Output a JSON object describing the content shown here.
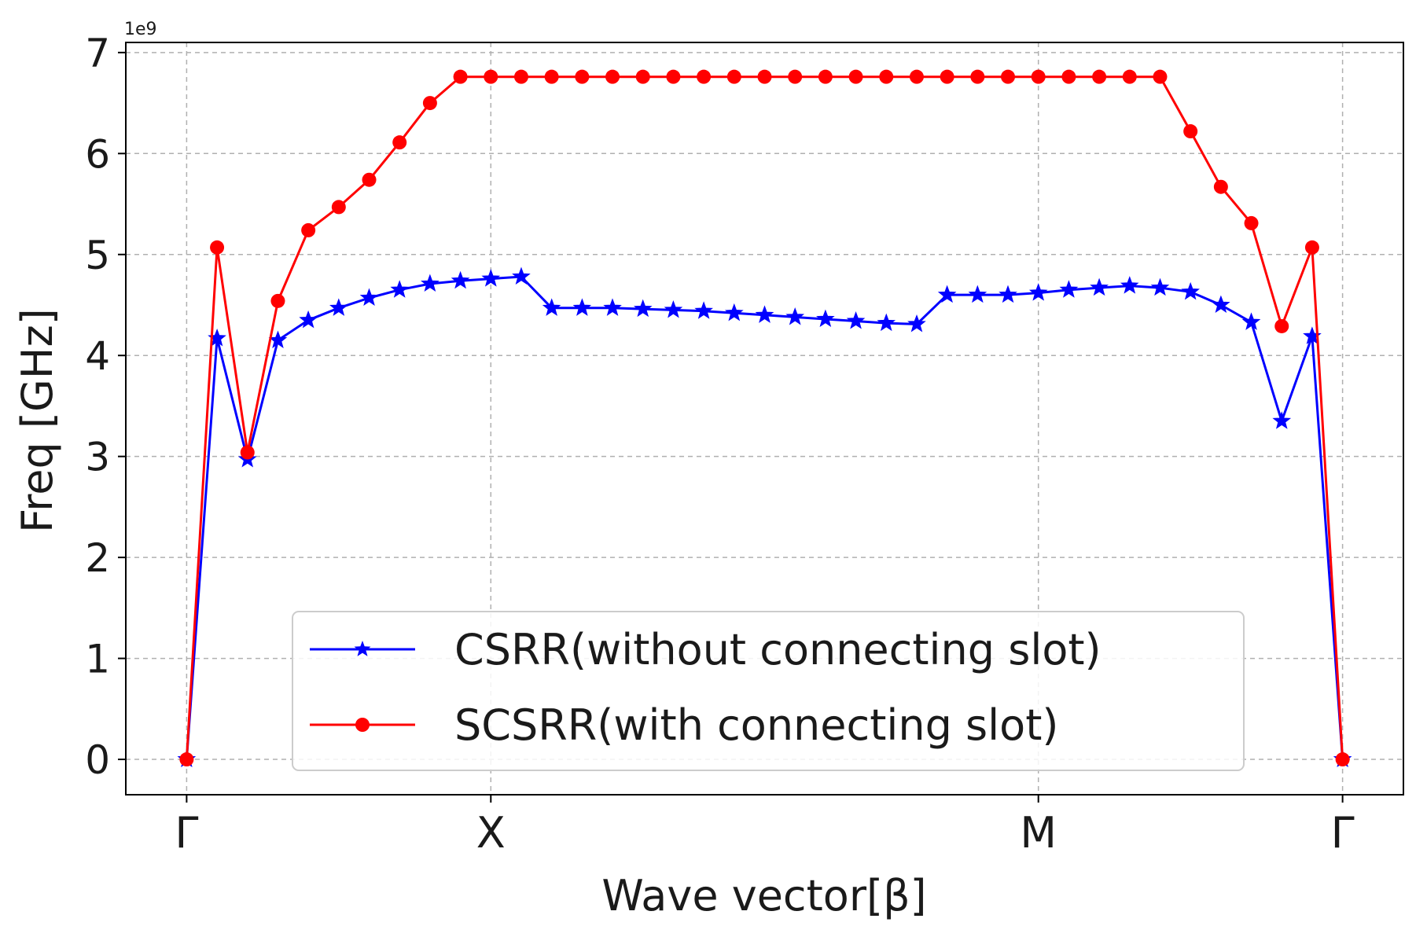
{
  "chart_data": {
    "type": "line",
    "title": "",
    "xlabel": "Wave vector[β]",
    "ylabel": "Freq [GHz]",
    "y_offset_label": "1e9",
    "ylim": [
      -0.35,
      7.1
    ],
    "xlim": [
      -2,
      40
    ],
    "grid": true,
    "legend_position": "lower-center",
    "x_ticks": [
      {
        "x": 0,
        "label": "Γ"
      },
      {
        "x": 10,
        "label": "X"
      },
      {
        "x": 28,
        "label": "M"
      },
      {
        "x": 38,
        "label": "Γ"
      }
    ],
    "y_ticks": [
      "0",
      "1",
      "2",
      "3",
      "4",
      "5",
      "6",
      "7"
    ],
    "x": [
      0,
      1,
      2,
      3,
      4,
      5,
      6,
      7,
      8,
      9,
      10,
      11,
      12,
      13,
      14,
      15,
      16,
      17,
      18,
      19,
      20,
      21,
      22,
      23,
      24,
      25,
      26,
      27,
      28,
      29,
      30,
      31,
      32,
      33,
      34,
      35,
      36,
      37,
      38
    ],
    "series": [
      {
        "name": "CSRR(without connecting slot)",
        "color": "#0000ff",
        "marker": "star",
        "values": [
          0,
          4.17,
          2.97,
          4.15,
          4.35,
          4.47,
          4.57,
          4.65,
          4.71,
          4.74,
          4.76,
          4.78,
          4.47,
          4.47,
          4.47,
          4.46,
          4.45,
          4.44,
          4.42,
          4.4,
          4.38,
          4.36,
          4.34,
          4.32,
          4.31,
          4.6,
          4.6,
          4.6,
          4.62,
          4.65,
          4.67,
          4.69,
          4.67,
          4.63,
          4.5,
          4.33,
          3.35,
          4.19,
          0
        ]
      },
      {
        "name": "SCSRR(with connecting slot)",
        "color": "#ff0000",
        "marker": "circle",
        "values": [
          0,
          5.07,
          3.04,
          4.54,
          5.24,
          5.47,
          5.74,
          6.11,
          6.5,
          6.76,
          6.76,
          6.76,
          6.76,
          6.76,
          6.76,
          6.76,
          6.76,
          6.76,
          6.76,
          6.76,
          6.76,
          6.76,
          6.76,
          6.76,
          6.76,
          6.76,
          6.76,
          6.76,
          6.76,
          6.76,
          6.76,
          6.76,
          6.76,
          6.22,
          5.67,
          5.31,
          4.29,
          5.07,
          0
        ]
      }
    ]
  }
}
